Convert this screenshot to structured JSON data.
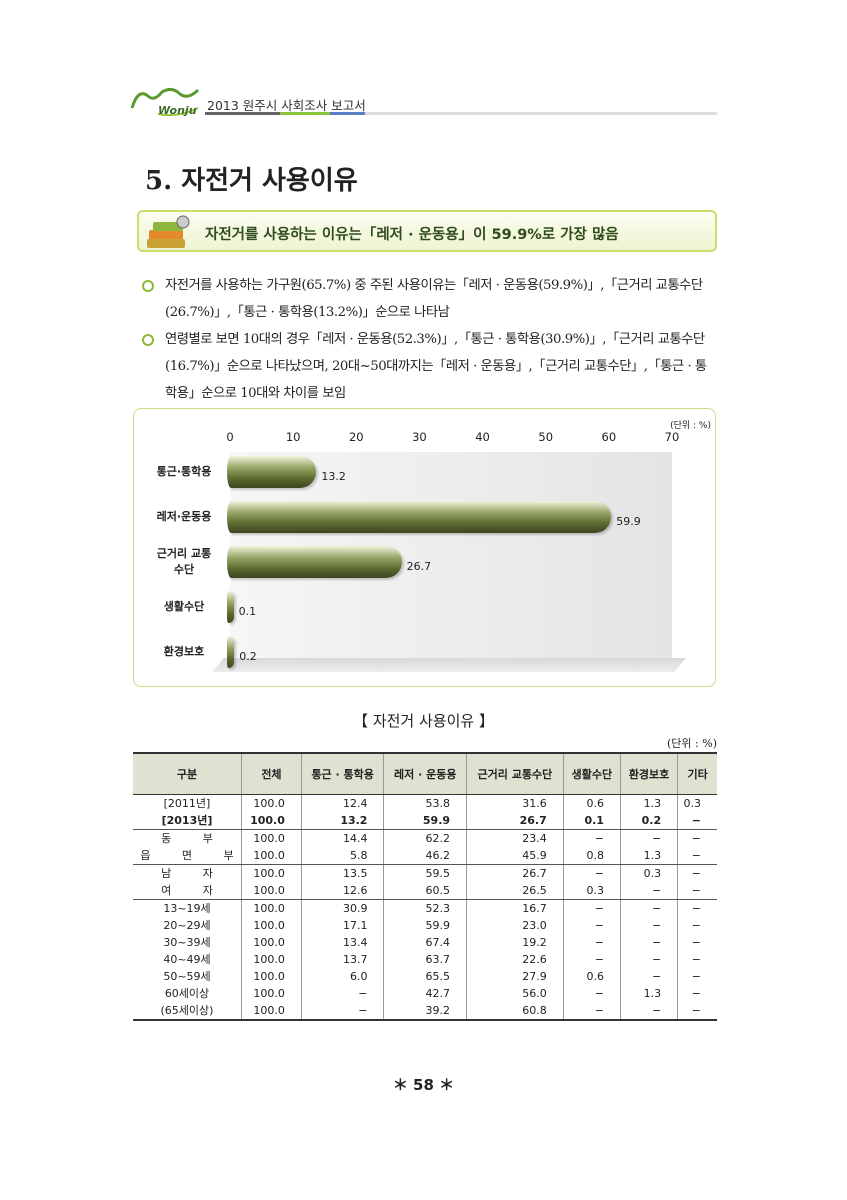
{
  "header": {
    "logo": "Wonju",
    "title": "2013 원주시 사회조사 보고서"
  },
  "section_title": "5. 자전거 사용이유",
  "summary": "자전거를 사용하는 이유는「레저 · 운동용」이 59.9%로 가장 많음",
  "bullets": [
    "자전거를 사용하는 가구원(65.7%) 중 주된 사용이유는「레저 · 운동용(59.9%)」,「근거리 교통수단(26.7%)」,「통근 · 통학용(13.2%)」순으로 나타남",
    "연령별로 보면 10대의 경우「레저 · 운동용(52.3%)」,「통근 · 통학용(30.9%)」,「근거리 교통수단(16.7%)」순으로 나타났으며, 20대~50대까지는「레저 · 운동용」,「근거리 교통수단」,「통근 · 통학용」순으로 10대와 차이를 보임"
  ],
  "chart_data": {
    "type": "bar",
    "orientation": "horizontal",
    "unit": "(단위 : %)",
    "categories": [
      "통근·통학용",
      "레저·운동용",
      "근거리 교통수단",
      "생활수단",
      "환경보호"
    ],
    "values": [
      13.2,
      59.9,
      26.7,
      0.1,
      0.2
    ],
    "color": "#6b7a3c",
    "xlim": [
      0,
      70
    ],
    "xticks": [
      0,
      10,
      20,
      30,
      40,
      50,
      60,
      70
    ]
  },
  "table": {
    "caption": "【 자전거 사용이유 】",
    "unit": "(단위 : %)",
    "header": [
      "구분",
      "전체",
      "통근 · 통학용",
      "레저 · 운동용",
      "근거리 교통수단",
      "생활수단",
      "환경보호",
      "기타"
    ],
    "groups": [
      {
        "rows": [
          [
            "[2011년]",
            "100.0",
            "12.4",
            "53.8",
            "31.6",
            "0.6",
            "1.3",
            "0.3"
          ],
          [
            "[2013년]",
            "100.0",
            "13.2",
            "59.9",
            "26.7",
            "0.1",
            "0.2",
            "−"
          ]
        ]
      },
      {
        "rows": [
          [
            "동 부",
            "100.0",
            "14.4",
            "62.2",
            "23.4",
            "−",
            "−",
            "−"
          ],
          [
            "읍 면 부",
            "100.0",
            "5.8",
            "46.2",
            "45.9",
            "0.8",
            "1.3",
            "−"
          ]
        ]
      },
      {
        "rows": [
          [
            "남 자",
            "100.0",
            "13.5",
            "59.5",
            "26.7",
            "−",
            "0.3",
            "−"
          ],
          [
            "여 자",
            "100.0",
            "12.6",
            "60.5",
            "26.5",
            "0.3",
            "−",
            "−"
          ]
        ]
      },
      {
        "rows": [
          [
            "13~19세",
            "100.0",
            "30.9",
            "52.3",
            "16.7",
            "−",
            "−",
            "−"
          ],
          [
            "20~29세",
            "100.0",
            "17.1",
            "59.9",
            "23.0",
            "−",
            "−",
            "−"
          ],
          [
            "30~39세",
            "100.0",
            "13.4",
            "67.4",
            "19.2",
            "−",
            "−",
            "−"
          ],
          [
            "40~49세",
            "100.0",
            "13.7",
            "63.7",
            "22.6",
            "−",
            "−",
            "−"
          ],
          [
            "50~59세",
            "100.0",
            "6.0",
            "65.5",
            "27.9",
            "0.6",
            "−",
            "−"
          ],
          [
            "60세이상",
            "100.0",
            "−",
            "42.7",
            "56.0",
            "−",
            "1.3",
            "−"
          ],
          [
            "(65세이상)",
            "100.0",
            "−",
            "39.2",
            "60.8",
            "−",
            "−",
            "−"
          ]
        ]
      }
    ]
  },
  "page_number": "＊ 58 ＊"
}
